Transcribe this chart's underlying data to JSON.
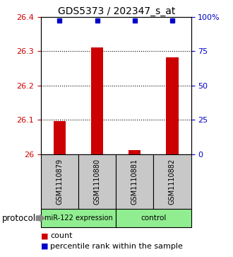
{
  "title": "GDS5373 / 202347_s_at",
  "samples": [
    "GSM1110879",
    "GSM1110880",
    "GSM1110881",
    "GSM1110882"
  ],
  "count_values": [
    26.097,
    26.31,
    26.012,
    26.282
  ],
  "percentile_values": [
    97,
    97,
    97,
    97
  ],
  "ylim_left": [
    26.0,
    26.4
  ],
  "ylim_right": [
    0,
    100
  ],
  "left_ticks": [
    26.0,
    26.1,
    26.2,
    26.3,
    26.4
  ],
  "left_tick_labels": [
    "26",
    "26.1",
    "26.2",
    "26.3",
    "26.4"
  ],
  "right_ticks": [
    0,
    25,
    50,
    75,
    100
  ],
  "right_tick_labels": [
    "0",
    "25",
    "50",
    "75",
    "100%"
  ],
  "bar_color": "#cc0000",
  "dot_color": "#0000cc",
  "protocol_labels": [
    "miR-122 expression",
    "control"
  ],
  "protocol_color": "#90ee90",
  "sample_box_color": "#c8c8c8",
  "left_axis_color": "#cc0000",
  "right_axis_color": "#0000cc",
  "bar_width": 0.32,
  "percentile_marker_size": 5
}
